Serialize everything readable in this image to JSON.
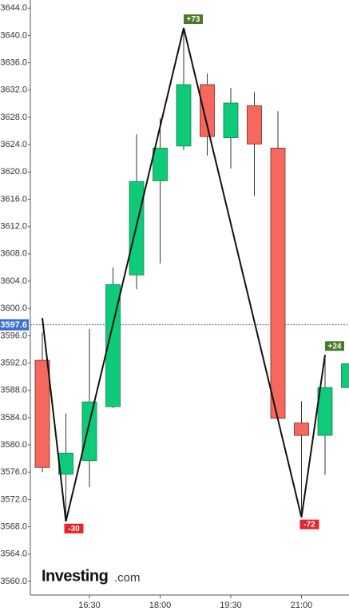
{
  "chart_data": {
    "type": "candlestick",
    "categories": [
      null,
      null,
      "16:30",
      null,
      null,
      "18:00",
      null,
      null,
      "19:30",
      null,
      null,
      "21:00",
      null,
      null
    ],
    "open": [
      3592.4,
      3575.7,
      3577.7,
      3585.6,
      3604.9,
      3618.7,
      3623.8,
      3632.8,
      3625.0,
      3629.7,
      3623.5,
      3583.2,
      3581.4,
      3588.4
    ],
    "high": [
      3596.5,
      3584.6,
      3597.0,
      3606.0,
      3625.5,
      3627.9,
      3641.1,
      3634.4,
      3632.3,
      3631.7,
      3628.9,
      3586.4,
      3593.1,
      3591.9
    ],
    "low": [
      3576.0,
      3569.0,
      3573.8,
      3585.4,
      3602.8,
      3606.6,
      3623.2,
      3622.4,
      3620.5,
      3616.5,
      3583.9,
      3569.4,
      3575.6,
      3588.4
    ],
    "close": [
      3576.7,
      3578.8,
      3586.3,
      3603.5,
      3618.6,
      3623.5,
      3632.8,
      3625.2,
      3630.1,
      3624.1,
      3583.9,
      3581.4,
      3588.4,
      3591.9
    ],
    "up_color": "#0ecb7a",
    "down_color": "#f6675d",
    "ylim": [
      3558,
      3645.2
    ],
    "yticks": [
      {
        "value": 3560,
        "label": "3560.0"
      },
      {
        "value": 3564,
        "label": "3564.0"
      },
      {
        "value": 3568,
        "label": "3568.0"
      },
      {
        "value": 3572,
        "label": "3572.0"
      },
      {
        "value": 3576,
        "label": "3576.0"
      },
      {
        "value": 3580,
        "label": "3580.0"
      },
      {
        "value": 3584,
        "label": "3584.0"
      },
      {
        "value": 3588,
        "label": "3588.0"
      },
      {
        "value": 3592,
        "label": "3592.0"
      },
      {
        "value": 3596,
        "label": "3596.0"
      },
      {
        "value": 3600,
        "label": "3600.0"
      },
      {
        "value": 3604,
        "label": "3604.0"
      },
      {
        "value": 3608,
        "label": "3608.0"
      },
      {
        "value": 3612,
        "label": "3612.0"
      },
      {
        "value": 3616,
        "label": "3616.0"
      },
      {
        "value": 3620,
        "label": "3620.0"
      },
      {
        "value": 3624,
        "label": "3624.0"
      },
      {
        "value": 3628,
        "label": "3628.0"
      },
      {
        "value": 3632,
        "label": "3632.0"
      },
      {
        "value": 3636,
        "label": "3636.0"
      },
      {
        "value": 3640,
        "label": "3640.0"
      },
      {
        "value": 3644,
        "label": "3644.0"
      }
    ],
    "current_price": 3597.6,
    "zigzag": [
      {
        "x": 0,
        "value": 3598.6
      },
      {
        "x": 1,
        "value": 3568.8,
        "label": "-30"
      },
      {
        "x": 6,
        "value": 3641.1,
        "label": "+73"
      },
      {
        "x": 11,
        "value": 3569.4,
        "label": "-72"
      },
      {
        "x": 12,
        "value": 3593.2,
        "label": "+24"
      }
    ],
    "logo": {
      "name": "Investing",
      "suffix": ".com"
    }
  }
}
